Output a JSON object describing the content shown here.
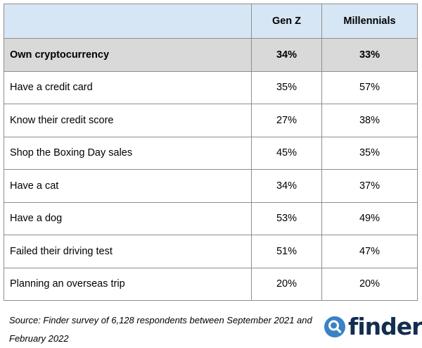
{
  "chart_data": {
    "type": "table",
    "columns": [
      "",
      "Gen Z",
      "Millennials"
    ],
    "rows": [
      {
        "label": "Own cryptocurrency",
        "values": [
          "34%",
          "33%"
        ],
        "highlight": true
      },
      {
        "label": "Have a credit card",
        "values": [
          "35%",
          "57%"
        ]
      },
      {
        "label": "Know their credit score",
        "values": [
          "27%",
          "38%"
        ]
      },
      {
        "label": "Shop the Boxing Day sales",
        "values": [
          "45%",
          "35%"
        ]
      },
      {
        "label": "Have a cat",
        "values": [
          "34%",
          "37%"
        ]
      },
      {
        "label": "Have a dog",
        "values": [
          "53%",
          "49%"
        ]
      },
      {
        "label": "Failed their driving test",
        "values": [
          "51%",
          "47%"
        ]
      },
      {
        "label": "Planning an overseas trip",
        "values": [
          "20%",
          "20%"
        ]
      }
    ]
  },
  "source": {
    "line1": "Source: Finder survey of 6,128 respondents between September 2021 and",
    "line2": "February 2022"
  },
  "logo": {
    "text": "finder",
    "icon": "magnifier-icon",
    "colors": {
      "circle": "#3b82c4",
      "text": "#132d4f"
    }
  },
  "colors": {
    "header_bg": "#d7e6f4",
    "highlight_bg": "#d9d9d9",
    "border": "#8e8e8e"
  }
}
